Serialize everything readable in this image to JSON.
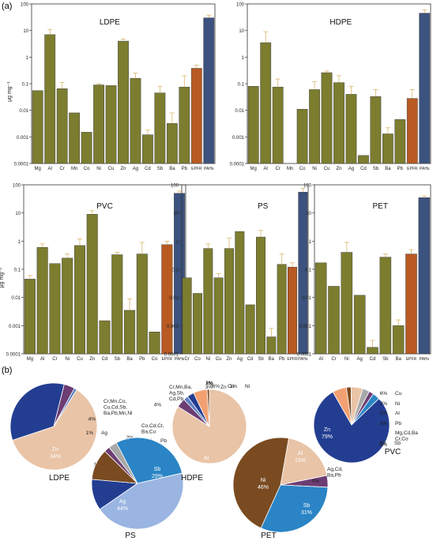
{
  "panel_labels": {
    "a": "(a)",
    "b": "(b)"
  },
  "colors": {
    "metal_bar": "#7c7d2e",
    "epfr_bar": "#b85a22",
    "pahs_bar": "#3c527f",
    "error_bar": "#d8b56a",
    "pie_Al": "#e9c4a7",
    "pie_Zn": "#233d91",
    "pie_Sb": "#2a84c5",
    "pie_Ag": "#9ab5e1",
    "pie_Ni": "#7a4b21",
    "pie_Cu": "#f2a071",
    "pie_Pb": "#a8a8a8",
    "pie_other": "#6c3d73",
    "pie_minor": "#5d7fc2",
    "pie_edge": "#ffffff"
  },
  "chart_data": [
    {
      "type": "bar",
      "title": "LDPE",
      "scale": "log",
      "ylabel": "μg mg⁻¹",
      "ylim": [
        0.0001,
        100
      ],
      "yticks": [
        "0.0001",
        "0.001",
        "0.01",
        "0.1",
        "1",
        "10",
        "100"
      ],
      "categories": [
        "Mg",
        "Al",
        "Cr",
        "Mn",
        "Co",
        "Ni",
        "Cu",
        "Zn",
        "Ag",
        "Cd",
        "Sb",
        "Ba",
        "Pb",
        "EPFR",
        "PAHs"
      ],
      "values": [
        0.055,
        7.0,
        0.065,
        0.008,
        0.0015,
        0.09,
        0.085,
        4.0,
        0.16,
        0.0012,
        0.045,
        0.0032,
        0.075,
        0.38,
        30
      ],
      "errors": [
        null,
        11.0,
        0.11,
        null,
        null,
        0.1,
        null,
        4.8,
        0.25,
        0.0018,
        0.08,
        0.008,
        0.2,
        0.5,
        38
      ]
    },
    {
      "type": "bar",
      "title": "HDPE",
      "scale": "log",
      "ylabel": "μg mg⁻¹",
      "ylim": [
        0.0001,
        100
      ],
      "yticks": [
        "0.0001",
        "0.001",
        "0.01",
        "0.1",
        "1",
        "10",
        "100"
      ],
      "categories": [
        "Mg",
        "Al",
        "Cr",
        "Mn",
        "Co",
        "Ni",
        "Cu",
        "Zn",
        "Ag",
        "Cd",
        "Sb",
        "Ba",
        "Pb",
        "EPFR",
        "PAHs"
      ],
      "values": [
        0.08,
        3.5,
        0.075,
        null,
        0.011,
        0.06,
        0.26,
        0.11,
        0.04,
        0.0002,
        0.033,
        0.0013,
        0.0045,
        0.028,
        45
      ],
      "errors": [
        null,
        9.0,
        0.15,
        null,
        null,
        0.12,
        0.3,
        0.2,
        0.08,
        null,
        0.06,
        0.0022,
        null,
        0.06,
        60
      ]
    },
    {
      "type": "bar",
      "title": "PVC",
      "scale": "log",
      "ylabel": "μg mg⁻¹",
      "ylim": [
        0.0001,
        100
      ],
      "yticks": [
        "0.0001",
        "0.001",
        "0.01",
        "0.1",
        "1",
        "10",
        "100"
      ],
      "categories": [
        "Mg",
        "Al",
        "Cr",
        "Ni",
        "Cu",
        "Zn",
        "Cd",
        "Sb",
        "Ba",
        "Pb",
        "Co",
        "EPFR",
        "PAHs"
      ],
      "values": [
        0.045,
        0.6,
        0.16,
        0.25,
        0.7,
        9.0,
        0.0015,
        0.33,
        0.0035,
        0.35,
        0.0006,
        0.75,
        50
      ],
      "errors": [
        0.06,
        0.8,
        null,
        0.35,
        1.2,
        12.0,
        null,
        0.4,
        0.009,
        0.9,
        null,
        1.0,
        60
      ]
    },
    {
      "type": "bar",
      "title": "PS",
      "scale": "log",
      "ylim": [
        0.0001,
        100
      ],
      "yticks": [
        "0.0001",
        "0.001",
        "0.01",
        "0.1",
        "1",
        "10",
        "100"
      ],
      "categories": [
        "Cr",
        "Co",
        "Ni",
        "Cu",
        "Zn",
        "Ag",
        "Cd",
        "Sb",
        "Ba",
        "Pb",
        "EPFR",
        "PAHs"
      ],
      "values": [
        0.05,
        0.014,
        0.55,
        0.05,
        0.55,
        2.2,
        0.0055,
        1.4,
        0.0004,
        0.15,
        0.12,
        55
      ],
      "errors": [
        null,
        null,
        0.8,
        0.07,
        1.3,
        null,
        null,
        2.4,
        0.0008,
        0.35,
        0.17,
        75
      ]
    },
    {
      "type": "bar",
      "title": "PET",
      "scale": "log",
      "ylim": [
        0.0001,
        100
      ],
      "yticks": [
        "0.0001",
        "0.001",
        "0.01",
        "0.1",
        "1",
        "10",
        "100"
      ],
      "categories": [
        "Al",
        "Cr",
        "Ni",
        "Ag",
        "Cd",
        "Sb",
        "Ba",
        "EPFR",
        "PAHs"
      ],
      "values": [
        0.17,
        0.025,
        0.4,
        0.012,
        0.00017,
        0.27,
        0.001,
        0.35,
        35
      ],
      "errors": [
        null,
        null,
        0.9,
        null,
        0.0003,
        0.35,
        0.0016,
        0.5,
        40
      ]
    },
    {
      "type": "pie",
      "title": "LDPE",
      "slices": [
        {
          "label": "Al",
          "value": 61,
          "color_key": "pie_Al"
        },
        {
          "label": "Zn",
          "value": 34,
          "color_key": "pie_Zn"
        },
        {
          "label": "Cr,Mn,Co, Cu,Cd,Sb, Ba,Pb,Mn,Ni",
          "value": 4,
          "color_key": "pie_other"
        },
        {
          "label": "Ag",
          "value": 1,
          "color_key": "pie_minor"
        }
      ]
    },
    {
      "type": "pie",
      "title": "PS",
      "slices": [
        {
          "label": "Ag",
          "value": 44,
          "color_key": "pie_Ag"
        },
        {
          "label": "Zn",
          "value": 11,
          "color_key": "pie_Zn"
        },
        {
          "label": "Ni",
          "value": 11,
          "color_key": "pie_Ni"
        },
        {
          "label": "Co,Cd,Cr, Ba,Cu",
          "value": 2,
          "color_key": "pie_other"
        },
        {
          "label": "Pb",
          "value": 3,
          "color_key": "pie_Pb"
        },
        {
          "label": "Sb",
          "value": 29,
          "color_key": "pie_Sb"
        }
      ]
    },
    {
      "type": "pie",
      "title": "HDPE",
      "slices": [
        {
          "label": "Al",
          "value": 84,
          "color_key": "pie_Al"
        },
        {
          "label": "Cr,Mn,Ba, Ag,Sb, Cd,Pb",
          "value": 4,
          "color_key": "pie_other"
        },
        {
          "label": "Mg",
          "value": 2,
          "color_key": "pie_minor"
        },
        {
          "label": "Zn",
          "value": 3,
          "color_key": "pie_Zn"
        },
        {
          "label": "Cu",
          "value": 6,
          "color_key": "pie_Cu"
        },
        {
          "label": "Ni",
          "value": 1,
          "color_key": "pie_Ni"
        }
      ]
    },
    {
      "type": "pie",
      "title": "PET",
      "slices": [
        {
          "label": "Al",
          "value": 19,
          "color_key": "pie_Al"
        },
        {
          "label": "Ag,Cd, Ba,Pb",
          "value": 4,
          "color_key": "pie_other"
        },
        {
          "label": "Sb",
          "value": 31,
          "color_key": "pie_Sb"
        },
        {
          "label": "Ni",
          "value": 46,
          "color_key": "pie_Ni"
        }
      ]
    },
    {
      "type": "pie",
      "title": "PVC",
      "slices": [
        {
          "label": "Zn",
          "value": 79,
          "color_key": "pie_Zn"
        },
        {
          "label": "Cu",
          "value": 6,
          "color_key": "pie_Cu"
        },
        {
          "label": "Ni",
          "value": 2,
          "color_key": "pie_Ni"
        },
        {
          "label": "Al",
          "value": 5,
          "color_key": "pie_Al"
        },
        {
          "label": "Pb",
          "value": 3,
          "color_key": "pie_Pb"
        },
        {
          "label": "Mg,Cd,Ba Cr,Co",
          "value": 2,
          "color_key": "pie_other"
        },
        {
          "label": "Sb",
          "value": 3,
          "color_key": "pie_Sb"
        }
      ]
    }
  ]
}
